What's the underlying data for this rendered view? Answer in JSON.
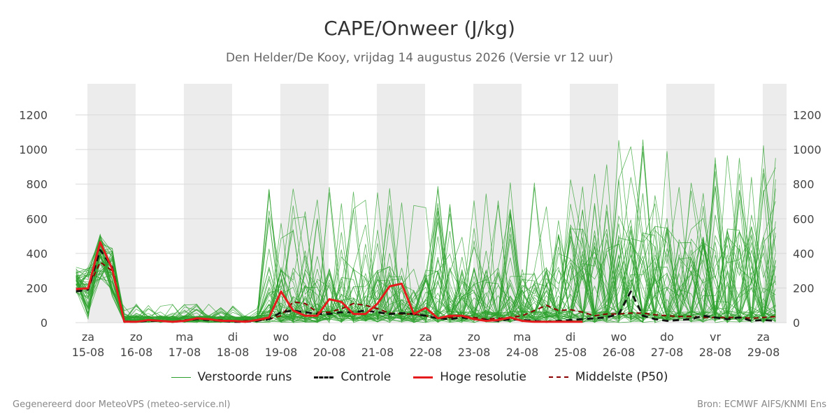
{
  "title": "CAPE/Onweer (J/kg)",
  "subtitle": "Den Helder/De Kooy, vrijdag 14 augustus 2026 (Versie vr 12 uur)",
  "footer": {
    "left": "Gegenereerd door MeteoVPS (meteo-service.nl)",
    "right": "Bron: ECMWF AIFS/KNMI Ens"
  },
  "colors": {
    "ensemble": "#2ca02c",
    "control": "#111111",
    "highres": "#e41a1c",
    "median": "#8b0000",
    "weekend_band": "#ececec",
    "grid": "#d9d9d9"
  },
  "chart_data": {
    "type": "line",
    "title": "CAPE/Onweer (J/kg)",
    "xlabel": "",
    "ylabel": "",
    "ylim": [
      0,
      1380
    ],
    "yticks": [
      0,
      200,
      400,
      600,
      800,
      1000,
      1200
    ],
    "y_right_axis": true,
    "grid": "horizontal",
    "legend_position": "bottom",
    "x_ticks": [
      {
        "day": "za",
        "date": "15-08"
      },
      {
        "day": "zo",
        "date": "16-08"
      },
      {
        "day": "ma",
        "date": "17-08"
      },
      {
        "day": "di",
        "date": "18-08"
      },
      {
        "day": "wo",
        "date": "19-08"
      },
      {
        "day": "do",
        "date": "20-08"
      },
      {
        "day": "vr",
        "date": "21-08"
      },
      {
        "day": "za",
        "date": "22-08"
      },
      {
        "day": "zo",
        "date": "23-08"
      },
      {
        "day": "ma",
        "date": "24-08"
      },
      {
        "day": "di",
        "date": "25-08"
      },
      {
        "day": "wo",
        "date": "26-08"
      },
      {
        "day": "do",
        "date": "27-08"
      },
      {
        "day": "vr",
        "date": "28-08"
      },
      {
        "day": "za",
        "date": "29-08"
      }
    ],
    "shaded_days": [
      "15-08",
      "17-08",
      "19-08",
      "21-08",
      "23-08",
      "25-08",
      "27-08",
      "29-08"
    ],
    "x_start": "2026-08-14T18:00",
    "x_step_hours": 6,
    "ensemble_member_count": 50,
    "series": [
      {
        "name": "Hoge resolutie",
        "values": [
          195,
          198,
          465,
          310,
          5,
          5,
          15,
          10,
          5,
          10,
          25,
          20,
          10,
          10,
          5,
          15,
          30,
          180,
          70,
          40,
          40,
          135,
          120,
          50,
          50,
          110,
          210,
          225,
          50,
          85,
          25,
          40,
          40,
          20,
          10,
          15,
          30,
          10,
          5,
          5,
          5,
          5,
          5
        ]
      },
      {
        "name": "Controle",
        "values": [
          180,
          190,
          420,
          320,
          5,
          5,
          10,
          10,
          5,
          10,
          20,
          15,
          10,
          5,
          5,
          10,
          20,
          60,
          70,
          60,
          50,
          50,
          60,
          60,
          70,
          60,
          50,
          55,
          50,
          40,
          25,
          20,
          30,
          20,
          15,
          10,
          20,
          15,
          10,
          5,
          10,
          15,
          20,
          25,
          30,
          50,
          180,
          40,
          20,
          10,
          15,
          20,
          40,
          30,
          20,
          30,
          10,
          15,
          10,
          10,
          20
        ]
      },
      {
        "name": "Middelste (P50)",
        "values": [
          190,
          200,
          350,
          300,
          10,
          5,
          15,
          10,
          5,
          15,
          20,
          20,
          15,
          10,
          10,
          15,
          20,
          40,
          120,
          110,
          60,
          60,
          80,
          110,
          100,
          80,
          55,
          50,
          50,
          40,
          25,
          30,
          40,
          30,
          20,
          25,
          30,
          40,
          70,
          100,
          70,
          75,
          60,
          40,
          50,
          50,
          55,
          55,
          45,
          40,
          35,
          35,
          30,
          30,
          30,
          30,
          25,
          30,
          35,
          30,
          45,
          50
        ]
      }
    ],
    "ensemble_label": "Verstoorde runs"
  },
  "legend": [
    {
      "label": "Verstoorde runs",
      "style": "thin-green"
    },
    {
      "label": "Controle",
      "style": "black-dashed"
    },
    {
      "label": "Hoge resolutie",
      "style": "red-solid"
    },
    {
      "label": "Middelste (P50)",
      "style": "darkred-dashed"
    }
  ]
}
